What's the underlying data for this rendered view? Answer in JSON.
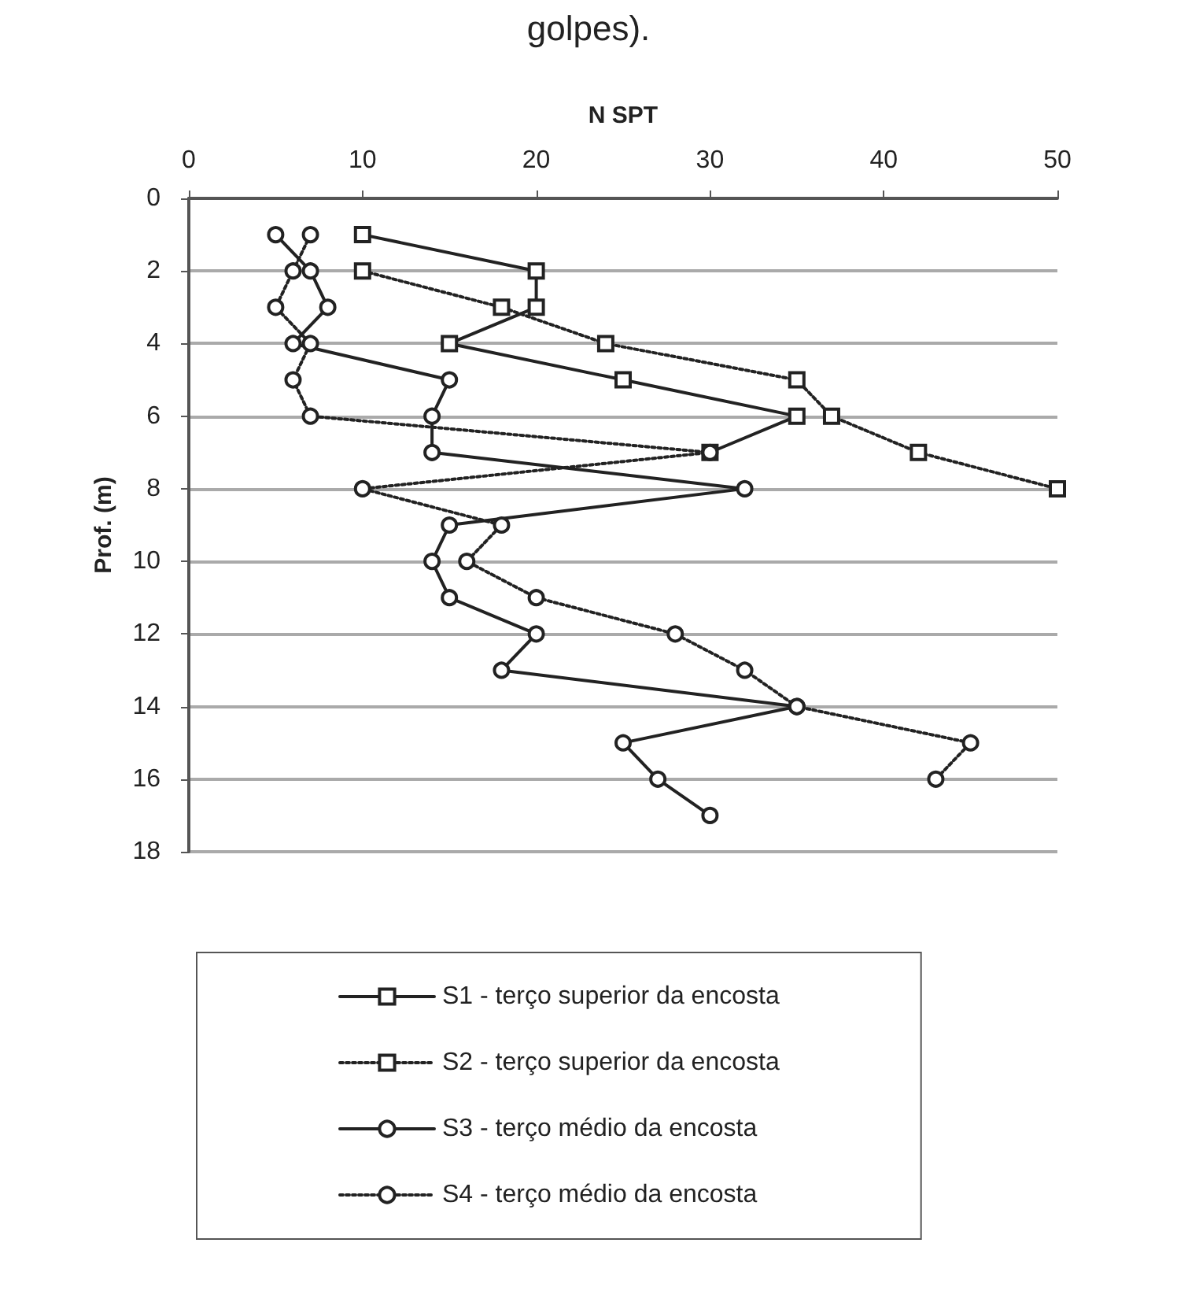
{
  "chart_data": {
    "type": "line",
    "title": "golpes).",
    "xlabel": "N SPT",
    "ylabel": "Prof. (m)",
    "orientation": "horizontal",
    "xlim": [
      0,
      50
    ],
    "xticks": [
      0,
      10,
      20,
      30,
      40,
      50
    ],
    "ylim": [
      18,
      0
    ],
    "yticks": [
      0,
      2,
      4,
      6,
      8,
      10,
      12,
      14,
      16,
      18
    ],
    "grid": "y",
    "legend": "bottom",
    "series": [
      {
        "name": "S1 - terço superior da encosta",
        "color": "#222222",
        "marker": "square",
        "line_style": "solid",
        "x": [
          1,
          2,
          3,
          4,
          5,
          6,
          7
        ],
        "values": [
          10,
          20,
          20,
          15,
          25,
          35,
          30
        ]
      },
      {
        "name": "S2 - terço superior da encosta",
        "color": "#222222",
        "marker": "square",
        "line_style": "dotted",
        "x": [
          2,
          3,
          4,
          5,
          6,
          7,
          8
        ],
        "values": [
          10,
          18,
          24,
          35,
          37,
          42,
          50
        ]
      },
      {
        "name": "S3 - terço médio da encosta",
        "color": "#222222",
        "marker": "circle",
        "line_style": "solid",
        "x": [
          1,
          2,
          3,
          4,
          5,
          6,
          7,
          8,
          9,
          10,
          11,
          12,
          13,
          14,
          15,
          16,
          17
        ],
        "values": [
          5,
          7,
          8,
          6,
          15,
          14,
          14,
          32,
          15,
          14,
          15,
          20,
          18,
          35,
          25,
          27,
          30
        ]
      },
      {
        "name": "S4 - terço médio da encosta",
        "color": "#222222",
        "marker": "circle",
        "line_style": "dotted",
        "x": [
          1,
          2,
          3,
          4,
          5,
          6,
          7,
          8,
          9,
          10,
          11,
          12,
          13,
          14,
          15,
          16
        ],
        "values": [
          7,
          6,
          5,
          7,
          6,
          7,
          30,
          10,
          18,
          16,
          20,
          28,
          32,
          35,
          45,
          43
        ]
      }
    ]
  }
}
